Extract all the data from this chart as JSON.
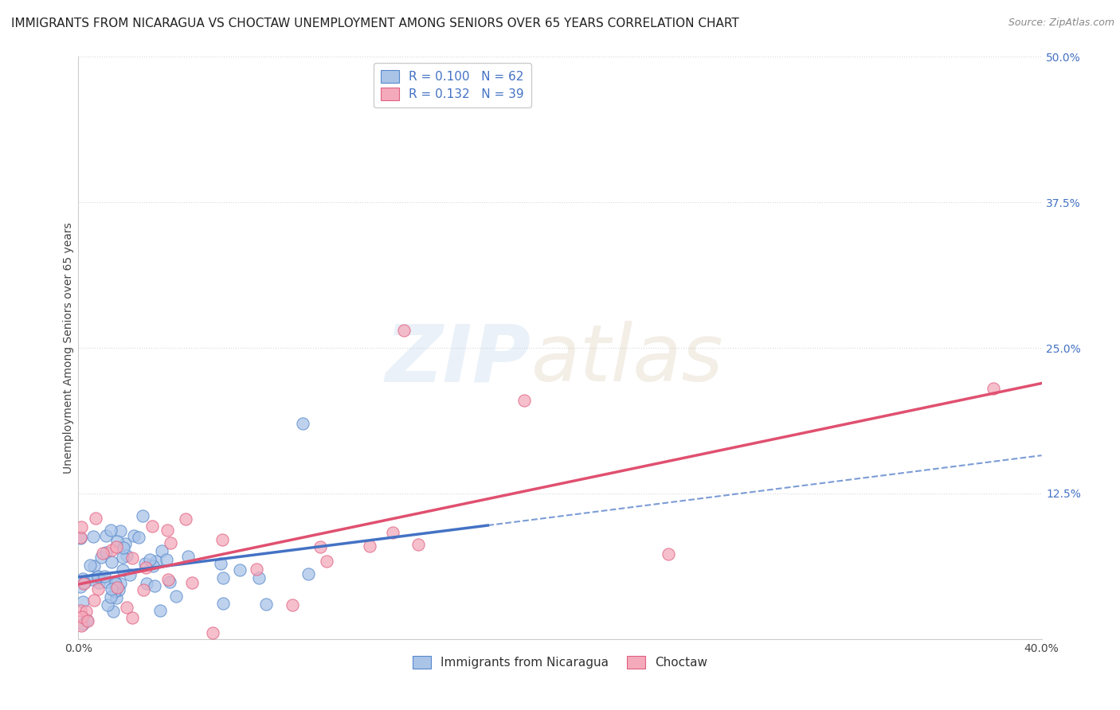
{
  "title": "IMMIGRANTS FROM NICARAGUA VS CHOCTAW UNEMPLOYMENT AMONG SENIORS OVER 65 YEARS CORRELATION CHART",
  "source": "Source: ZipAtlas.com",
  "ylabel": "Unemployment Among Seniors over 65 years",
  "xlim": [
    0.0,
    0.4
  ],
  "ylim": [
    0.0,
    0.5
  ],
  "xticks": [
    0.0,
    0.4
  ],
  "xtick_labels": [
    "0.0%",
    "40.0%"
  ],
  "yticks": [
    0.0,
    0.125,
    0.25,
    0.375,
    0.5
  ],
  "ytick_labels": [
    "",
    "12.5%",
    "25.0%",
    "37.5%",
    "50.0%"
  ],
  "blue_fill": "#aac4e8",
  "blue_edge": "#5588cc",
  "pink_fill": "#f4aabb",
  "pink_edge": "#e06080",
  "blue_line_color": "#4472c4",
  "pink_line_color": "#e05070",
  "blue_r": 0.1,
  "blue_n": 62,
  "pink_r": 0.132,
  "pink_n": 39,
  "legend_color": "#4472c4",
  "bg_color": "#ffffff",
  "grid_color": "#d8d8d8",
  "title_fontsize": 11,
  "ylabel_fontsize": 10,
  "tick_fontsize": 10,
  "legend_fontsize": 11,
  "source_fontsize": 9
}
